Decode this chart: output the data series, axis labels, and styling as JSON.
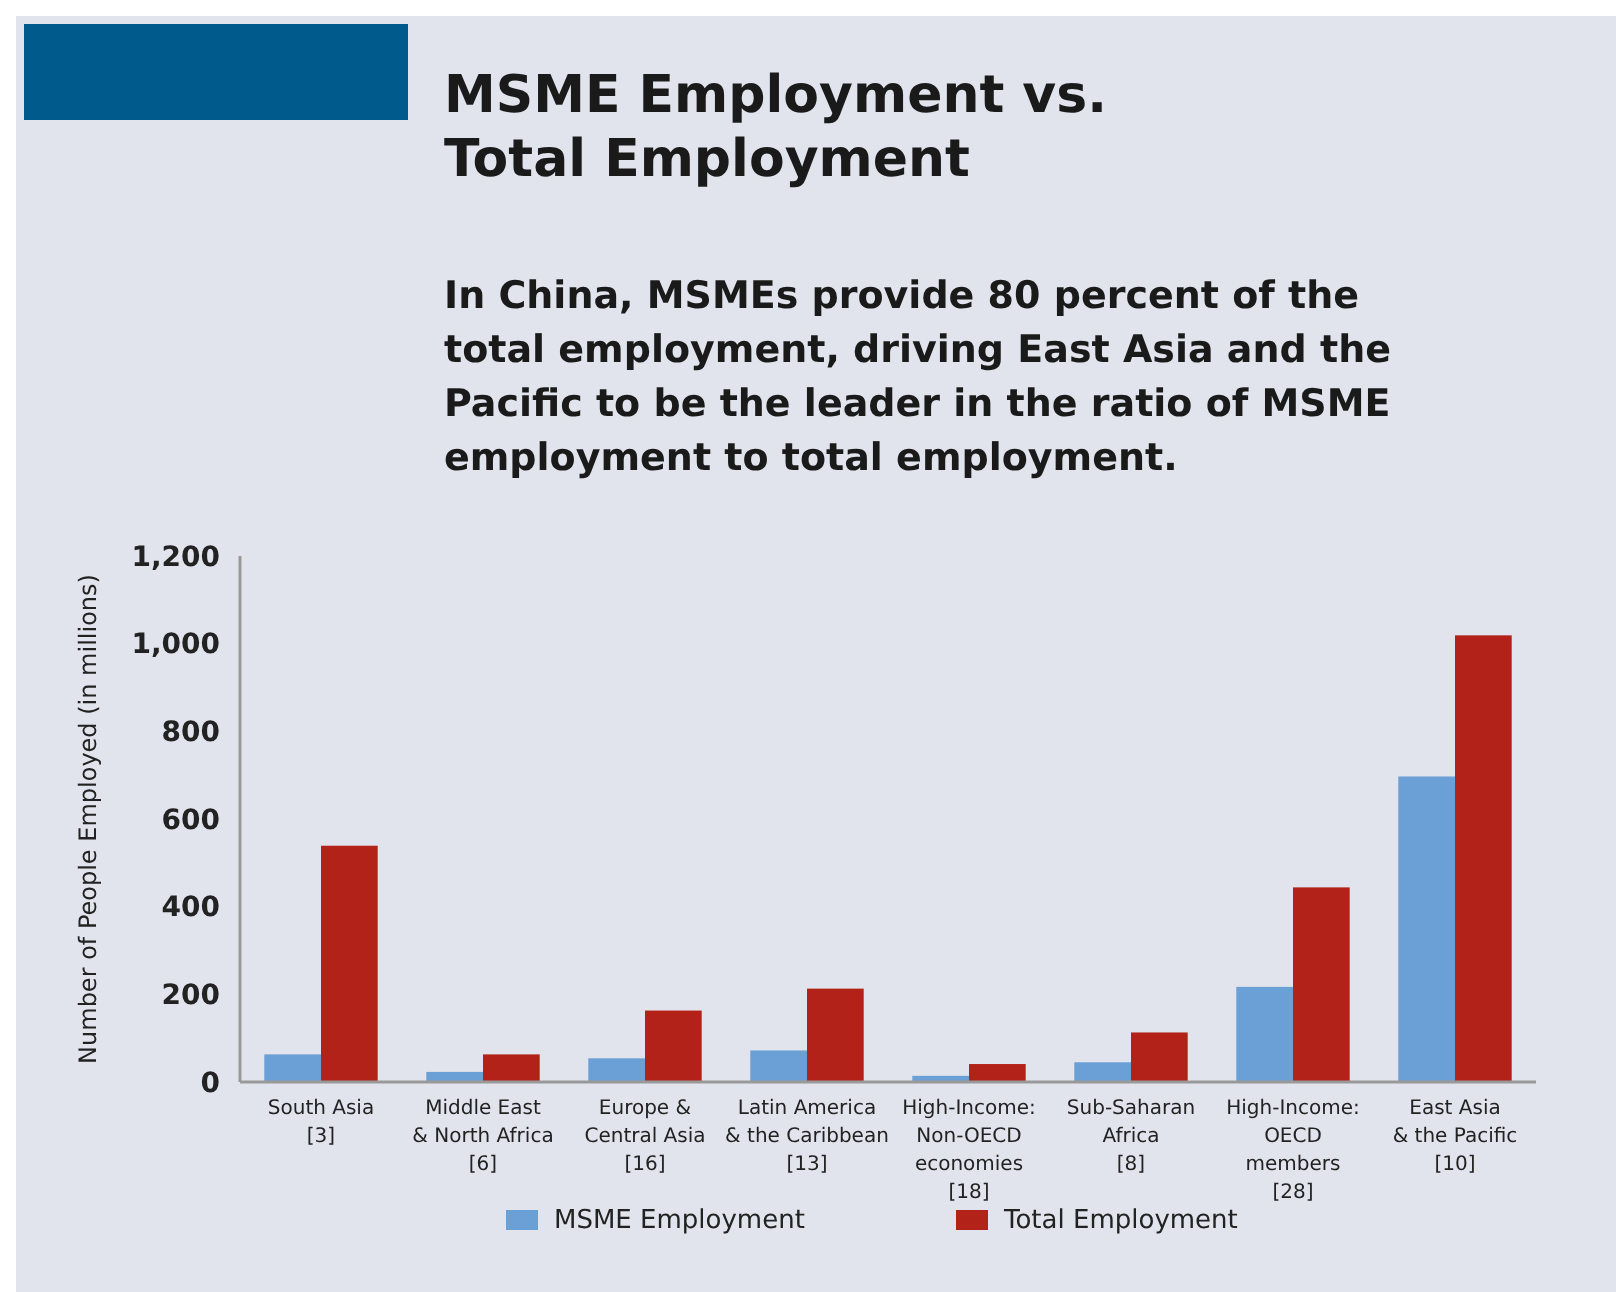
{
  "chart_data": {
    "type": "bar",
    "title": "MSME Employment vs.\nTotal Employment",
    "subtitle": "In China, MSMEs provide 80 percent of the\ntotal employment, driving East Asia and the\nPacific to be the leader in the ratio of MSME\nemployment to total employment.",
    "ylabel": "Number of People Employed (in millions)",
    "categories": [
      "South Asia\n[3]",
      "Middle East\n& North Africa\n[6]",
      "Europe &\nCentral Asia\n[16]",
      "Latin America\n& the Caribbean\n[13]",
      "High-Income:\nNon-OECD\neconomies\n[18]",
      "Sub-Saharan\nAfrica\n[8]",
      "High-Income:\nOECD\nmembers\n[28]",
      "East Asia\n& the Pacific\n[10]"
    ],
    "series": [
      {
        "name": "MSME Employment",
        "color": "#6aa0d6",
        "values": [
          63,
          23,
          54,
          72,
          14,
          45,
          217,
          697
        ]
      },
      {
        "name": "Total Employment",
        "color": "#b22218",
        "values": [
          539,
          63,
          163,
          213,
          41,
          113,
          444,
          1019
        ]
      }
    ],
    "ylim": [
      0,
      1200
    ],
    "yticks": [
      0,
      {
        "value": 200,
        "label": "200"
      },
      {
        "value": 400,
        "label": "400"
      },
      {
        "value": 600,
        "label": "600"
      },
      {
        "value": 800,
        "label": "800"
      },
      {
        "value": 1000,
        "label": "1,000"
      },
      {
        "value": 1200,
        "label": "1,200"
      }
    ],
    "grid": false,
    "legend": "bottom"
  }
}
